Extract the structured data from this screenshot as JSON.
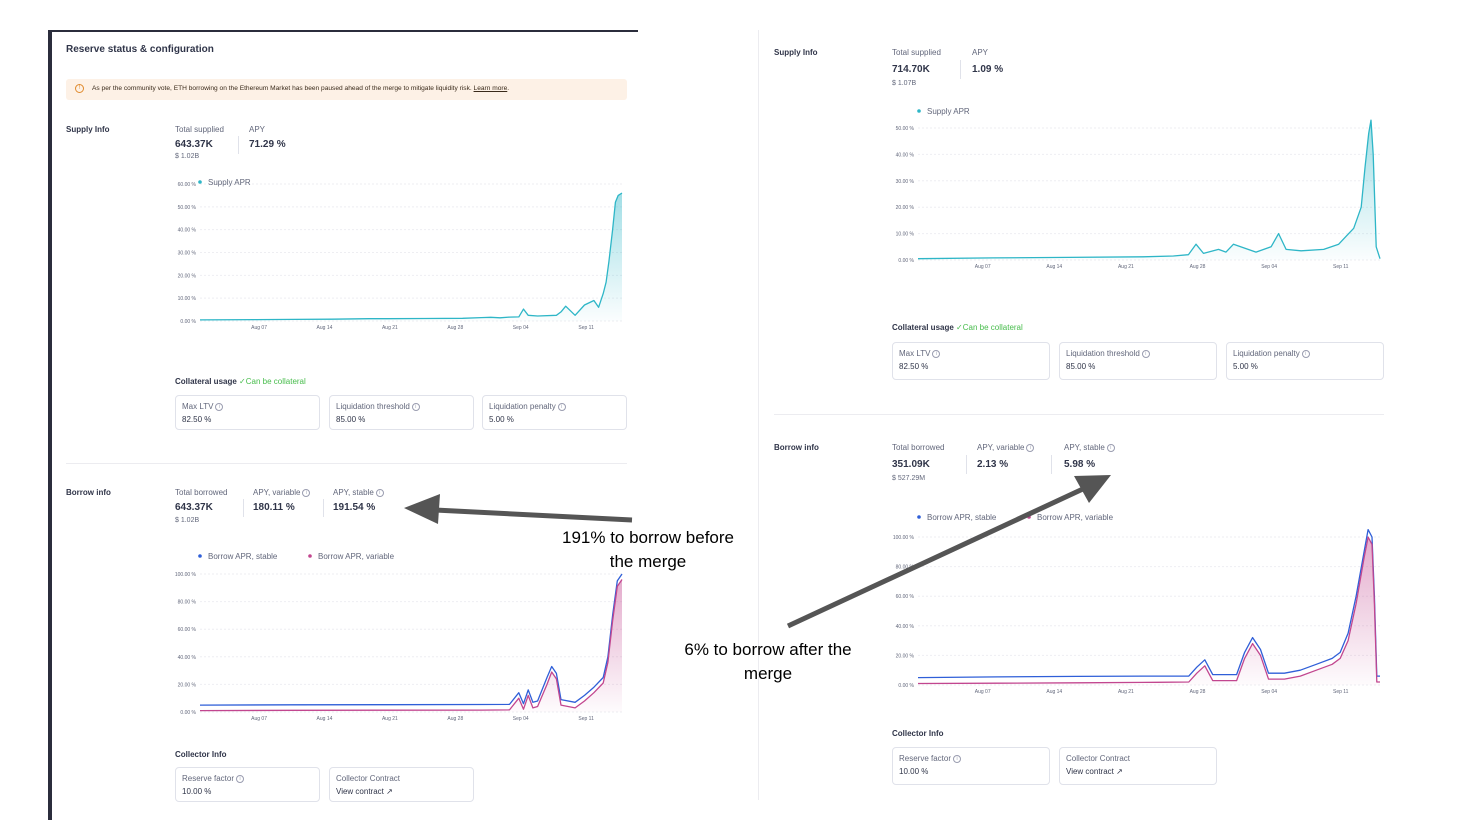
{
  "colors": {
    "supply": "#2eb6c7",
    "stable": "#2f5fd8",
    "variable": "#c2468f",
    "success": "#46bc4b",
    "arrow": "#555555"
  },
  "left": {
    "title": "Reserve status & configuration",
    "alert": {
      "text": "As per the community vote, ETH borrowing on the Ethereum Market has been paused ahead of the merge to mitigate liquidity risk.",
      "link": "Learn more",
      "end": "."
    },
    "supply": {
      "label": "Supply Info",
      "total_label": "Total supplied",
      "total": "643.37K",
      "total_usd": "$ 1.02B",
      "apy_label": "APY",
      "apy": "71.29 %"
    },
    "collateral": {
      "label": "Collateral usage",
      "status": "Can be collateral",
      "boxes": [
        {
          "label": "Max LTV",
          "value": "82.50 %"
        },
        {
          "label": "Liquidation threshold",
          "value": "85.00 %"
        },
        {
          "label": "Liquidation penalty",
          "value": "5.00 %"
        }
      ]
    },
    "borrow": {
      "label": "Borrow info",
      "total_label": "Total borrowed",
      "total": "643.37K",
      "total_usd": "$ 1.02B",
      "apy_var_label": "APY, variable",
      "apy_var": "180.11 %",
      "apy_stable_label": "APY, stable",
      "apy_stable": "191.54 %"
    },
    "collector": {
      "label": "Collector Info",
      "boxes": [
        {
          "label": "Reserve factor",
          "value": "10.00 %"
        },
        {
          "label": "Collector Contract",
          "value": "View contract"
        }
      ]
    }
  },
  "right": {
    "supply": {
      "label": "Supply Info",
      "total_label": "Total supplied",
      "total": "714.70K",
      "total_usd": "$ 1.07B",
      "apy_label": "APY",
      "apy": "1.09 %"
    },
    "collateral": {
      "label": "Collateral usage",
      "status": "Can be collateral",
      "boxes": [
        {
          "label": "Max LTV",
          "value": "82.50 %"
        },
        {
          "label": "Liquidation threshold",
          "value": "85.00 %"
        },
        {
          "label": "Liquidation penalty",
          "value": "5.00 %"
        }
      ]
    },
    "borrow": {
      "label": "Borrow info",
      "total_label": "Total borrowed",
      "total": "351.09K",
      "total_usd": "$ 527.29M",
      "apy_var_label": "APY, variable",
      "apy_var": "2.13 %",
      "apy_stable_label": "APY, stable",
      "apy_stable": "5.98 %"
    },
    "collector": {
      "label": "Collector Info",
      "boxes": [
        {
          "label": "Reserve factor",
          "value": "10.00 %"
        },
        {
          "label": "Collector Contract",
          "value": "View contract"
        }
      ]
    }
  },
  "annotations": {
    "before": [
      "191% to borrow before",
      "the merge"
    ],
    "after": [
      "6% to borrow after the",
      "merge"
    ]
  },
  "chart_data": [
    {
      "id": "left-supply",
      "type": "area",
      "legend": [
        "Supply APR"
      ],
      "yticks": [
        "0.00 %",
        "10.00 %",
        "20.00 %",
        "30.00 %",
        "40.00 %",
        "50.00 %",
        "60.00 %"
      ],
      "ylim": [
        0,
        60
      ],
      "xticks": [
        "Aug 07",
        "Aug 14",
        "Aug 21",
        "Aug 28",
        "Sep 04",
        "Sep 11"
      ],
      "series": [
        {
          "name": "Supply APR",
          "color": "supply",
          "points": [
            [
              0,
              0.5
            ],
            [
              6,
              0.6
            ],
            [
              10,
              0.7
            ],
            [
              14,
              0.8
            ],
            [
              18,
              1.0
            ],
            [
              20,
              1.0
            ],
            [
              24,
              1.1
            ],
            [
              28,
              1.2
            ],
            [
              30,
              1.5
            ],
            [
              31,
              1.6
            ],
            [
              32,
              1.4
            ],
            [
              33,
              1.7
            ],
            [
              34,
              1.8
            ],
            [
              34.5,
              5.2
            ],
            [
              35,
              2.5
            ],
            [
              36,
              2.2
            ],
            [
              38,
              2.5
            ],
            [
              38.5,
              4
            ],
            [
              39,
              6.5
            ],
            [
              40,
              2.5
            ],
            [
              41,
              7
            ],
            [
              42,
              9
            ],
            [
              42.5,
              6
            ],
            [
              43,
              12
            ],
            [
              43.3,
              17
            ],
            [
              43.6,
              26
            ],
            [
              44,
              40
            ],
            [
              44.3,
              52
            ],
            [
              44.6,
              55
            ],
            [
              45,
              56
            ]
          ]
        }
      ]
    },
    {
      "id": "left-borrow",
      "type": "line",
      "legend": [
        "Borrow APR, stable",
        "Borrow APR, variable"
      ],
      "yticks": [
        "0.00 %",
        "20.00 %",
        "40.00 %",
        "60.00 %",
        "80.00 %",
        "100.00 %"
      ],
      "ylim": [
        0,
        100
      ],
      "xticks": [
        "Aug 07",
        "Aug 14",
        "Aug 21",
        "Aug 28",
        "Sep 04",
        "Sep 11"
      ],
      "series": [
        {
          "name": "Borrow APR, stable",
          "color": "stable",
          "points": [
            [
              0,
              5
            ],
            [
              10,
              5.2
            ],
            [
              20,
              5.3
            ],
            [
              30,
              5.4
            ],
            [
              33,
              5.5
            ],
            [
              34,
              14
            ],
            [
              34.5,
              6
            ],
            [
              35,
              16
            ],
            [
              35.5,
              7
            ],
            [
              36,
              8
            ],
            [
              37,
              25
            ],
            [
              37.5,
              33
            ],
            [
              38,
              28
            ],
            [
              38.5,
              9
            ],
            [
              40,
              7
            ],
            [
              41,
              12
            ],
            [
              42,
              18
            ],
            [
              43,
              25
            ],
            [
              43.5,
              40
            ],
            [
              44,
              70
            ],
            [
              44.5,
              95
            ],
            [
              45,
              100
            ]
          ]
        },
        {
          "name": "Borrow APR, variable",
          "color": "variable",
          "points": [
            [
              0,
              1
            ],
            [
              10,
              1.2
            ],
            [
              20,
              1.3
            ],
            [
              30,
              1.4
            ],
            [
              33,
              1.5
            ],
            [
              34,
              10
            ],
            [
              34.5,
              2
            ],
            [
              35,
              12
            ],
            [
              35.5,
              3
            ],
            [
              36,
              4
            ],
            [
              37,
              20
            ],
            [
              37.5,
              29
            ],
            [
              38,
              24
            ],
            [
              38.5,
              5
            ],
            [
              40,
              3
            ],
            [
              41,
              8
            ],
            [
              42,
              14
            ],
            [
              43,
              21
            ],
            [
              43.5,
              36
            ],
            [
              44,
              66
            ],
            [
              44.5,
              91
            ],
            [
              45,
              96
            ]
          ]
        }
      ]
    },
    {
      "id": "right-supply",
      "type": "area",
      "legend": [
        "Supply APR"
      ],
      "yticks": [
        "0.00 %",
        "10.00 %",
        "20.00 %",
        "30.00 %",
        "40.00 %",
        "50.00 %"
      ],
      "ylim": [
        0,
        50
      ],
      "xticks": [
        "Aug 07",
        "Aug 14",
        "Aug 21",
        "Aug 28",
        "Sep 04",
        "Sep 11"
      ],
      "series": [
        {
          "name": "Supply APR",
          "color": "supply",
          "points": [
            [
              0,
              0.5
            ],
            [
              10,
              0.8
            ],
            [
              20,
              1.0
            ],
            [
              30,
              1.2
            ],
            [
              34,
              1.5
            ],
            [
              36,
              2.0
            ],
            [
              37,
              6
            ],
            [
              38,
              2.5
            ],
            [
              40,
              4
            ],
            [
              41,
              3
            ],
            [
              42,
              6
            ],
            [
              45,
              3
            ],
            [
              47,
              5
            ],
            [
              48,
              10
            ],
            [
              49,
              4
            ],
            [
              51,
              3.5
            ],
            [
              54,
              4
            ],
            [
              56,
              6
            ],
            [
              57,
              9
            ],
            [
              58,
              12
            ],
            [
              59,
              20
            ],
            [
              59.5,
              35
            ],
            [
              60,
              48
            ],
            [
              60.3,
              53
            ],
            [
              60.6,
              40
            ],
            [
              61,
              5
            ],
            [
              61.5,
              0.5
            ]
          ]
        }
      ]
    },
    {
      "id": "right-borrow",
      "type": "line",
      "legend": [
        "Borrow APR, stable",
        "Borrow APR, variable"
      ],
      "yticks": [
        "0.00 %",
        "20.00 %",
        "40.00 %",
        "60.00 %",
        "80.00 %",
        "100.00 %"
      ],
      "ylim": [
        0,
        100
      ],
      "xticks": [
        "Aug 07",
        "Aug 14",
        "Aug 21",
        "Aug 28",
        "Sep 04",
        "Sep 11"
      ],
      "series": [
        {
          "name": "Borrow APR, stable",
          "color": "stable",
          "points": [
            [
              0,
              5
            ],
            [
              10,
              5.5
            ],
            [
              20,
              5.8
            ],
            [
              30,
              6
            ],
            [
              34,
              6
            ],
            [
              35,
              12
            ],
            [
              36,
              17
            ],
            [
              37,
              7
            ],
            [
              40,
              7
            ],
            [
              41,
              22
            ],
            [
              42,
              32
            ],
            [
              43,
              24
            ],
            [
              44,
              8
            ],
            [
              46,
              8
            ],
            [
              48,
              10
            ],
            [
              50,
              14
            ],
            [
              52,
              18
            ],
            [
              53,
              22
            ],
            [
              54,
              35
            ],
            [
              55,
              60
            ],
            [
              56,
              90
            ],
            [
              56.5,
              105
            ],
            [
              57,
              100
            ],
            [
              57.3,
              60
            ],
            [
              57.6,
              6
            ],
            [
              58,
              6
            ]
          ]
        },
        {
          "name": "Borrow APR, variable",
          "color": "variable",
          "points": [
            [
              0,
              1
            ],
            [
              10,
              1.2
            ],
            [
              20,
              1.5
            ],
            [
              30,
              1.8
            ],
            [
              34,
              2
            ],
            [
              35,
              8
            ],
            [
              36,
              13
            ],
            [
              37,
              3
            ],
            [
              40,
              3
            ],
            [
              41,
              18
            ],
            [
              42,
              28
            ],
            [
              43,
              20
            ],
            [
              44,
              4
            ],
            [
              46,
              4
            ],
            [
              48,
              6
            ],
            [
              50,
              10
            ],
            [
              52,
              14
            ],
            [
              53,
              18
            ],
            [
              54,
              30
            ],
            [
              55,
              55
            ],
            [
              56,
              86
            ],
            [
              56.5,
              100
            ],
            [
              57,
              95
            ],
            [
              57.3,
              55
            ],
            [
              57.6,
              2
            ],
            [
              58,
              2
            ]
          ]
        }
      ]
    }
  ]
}
